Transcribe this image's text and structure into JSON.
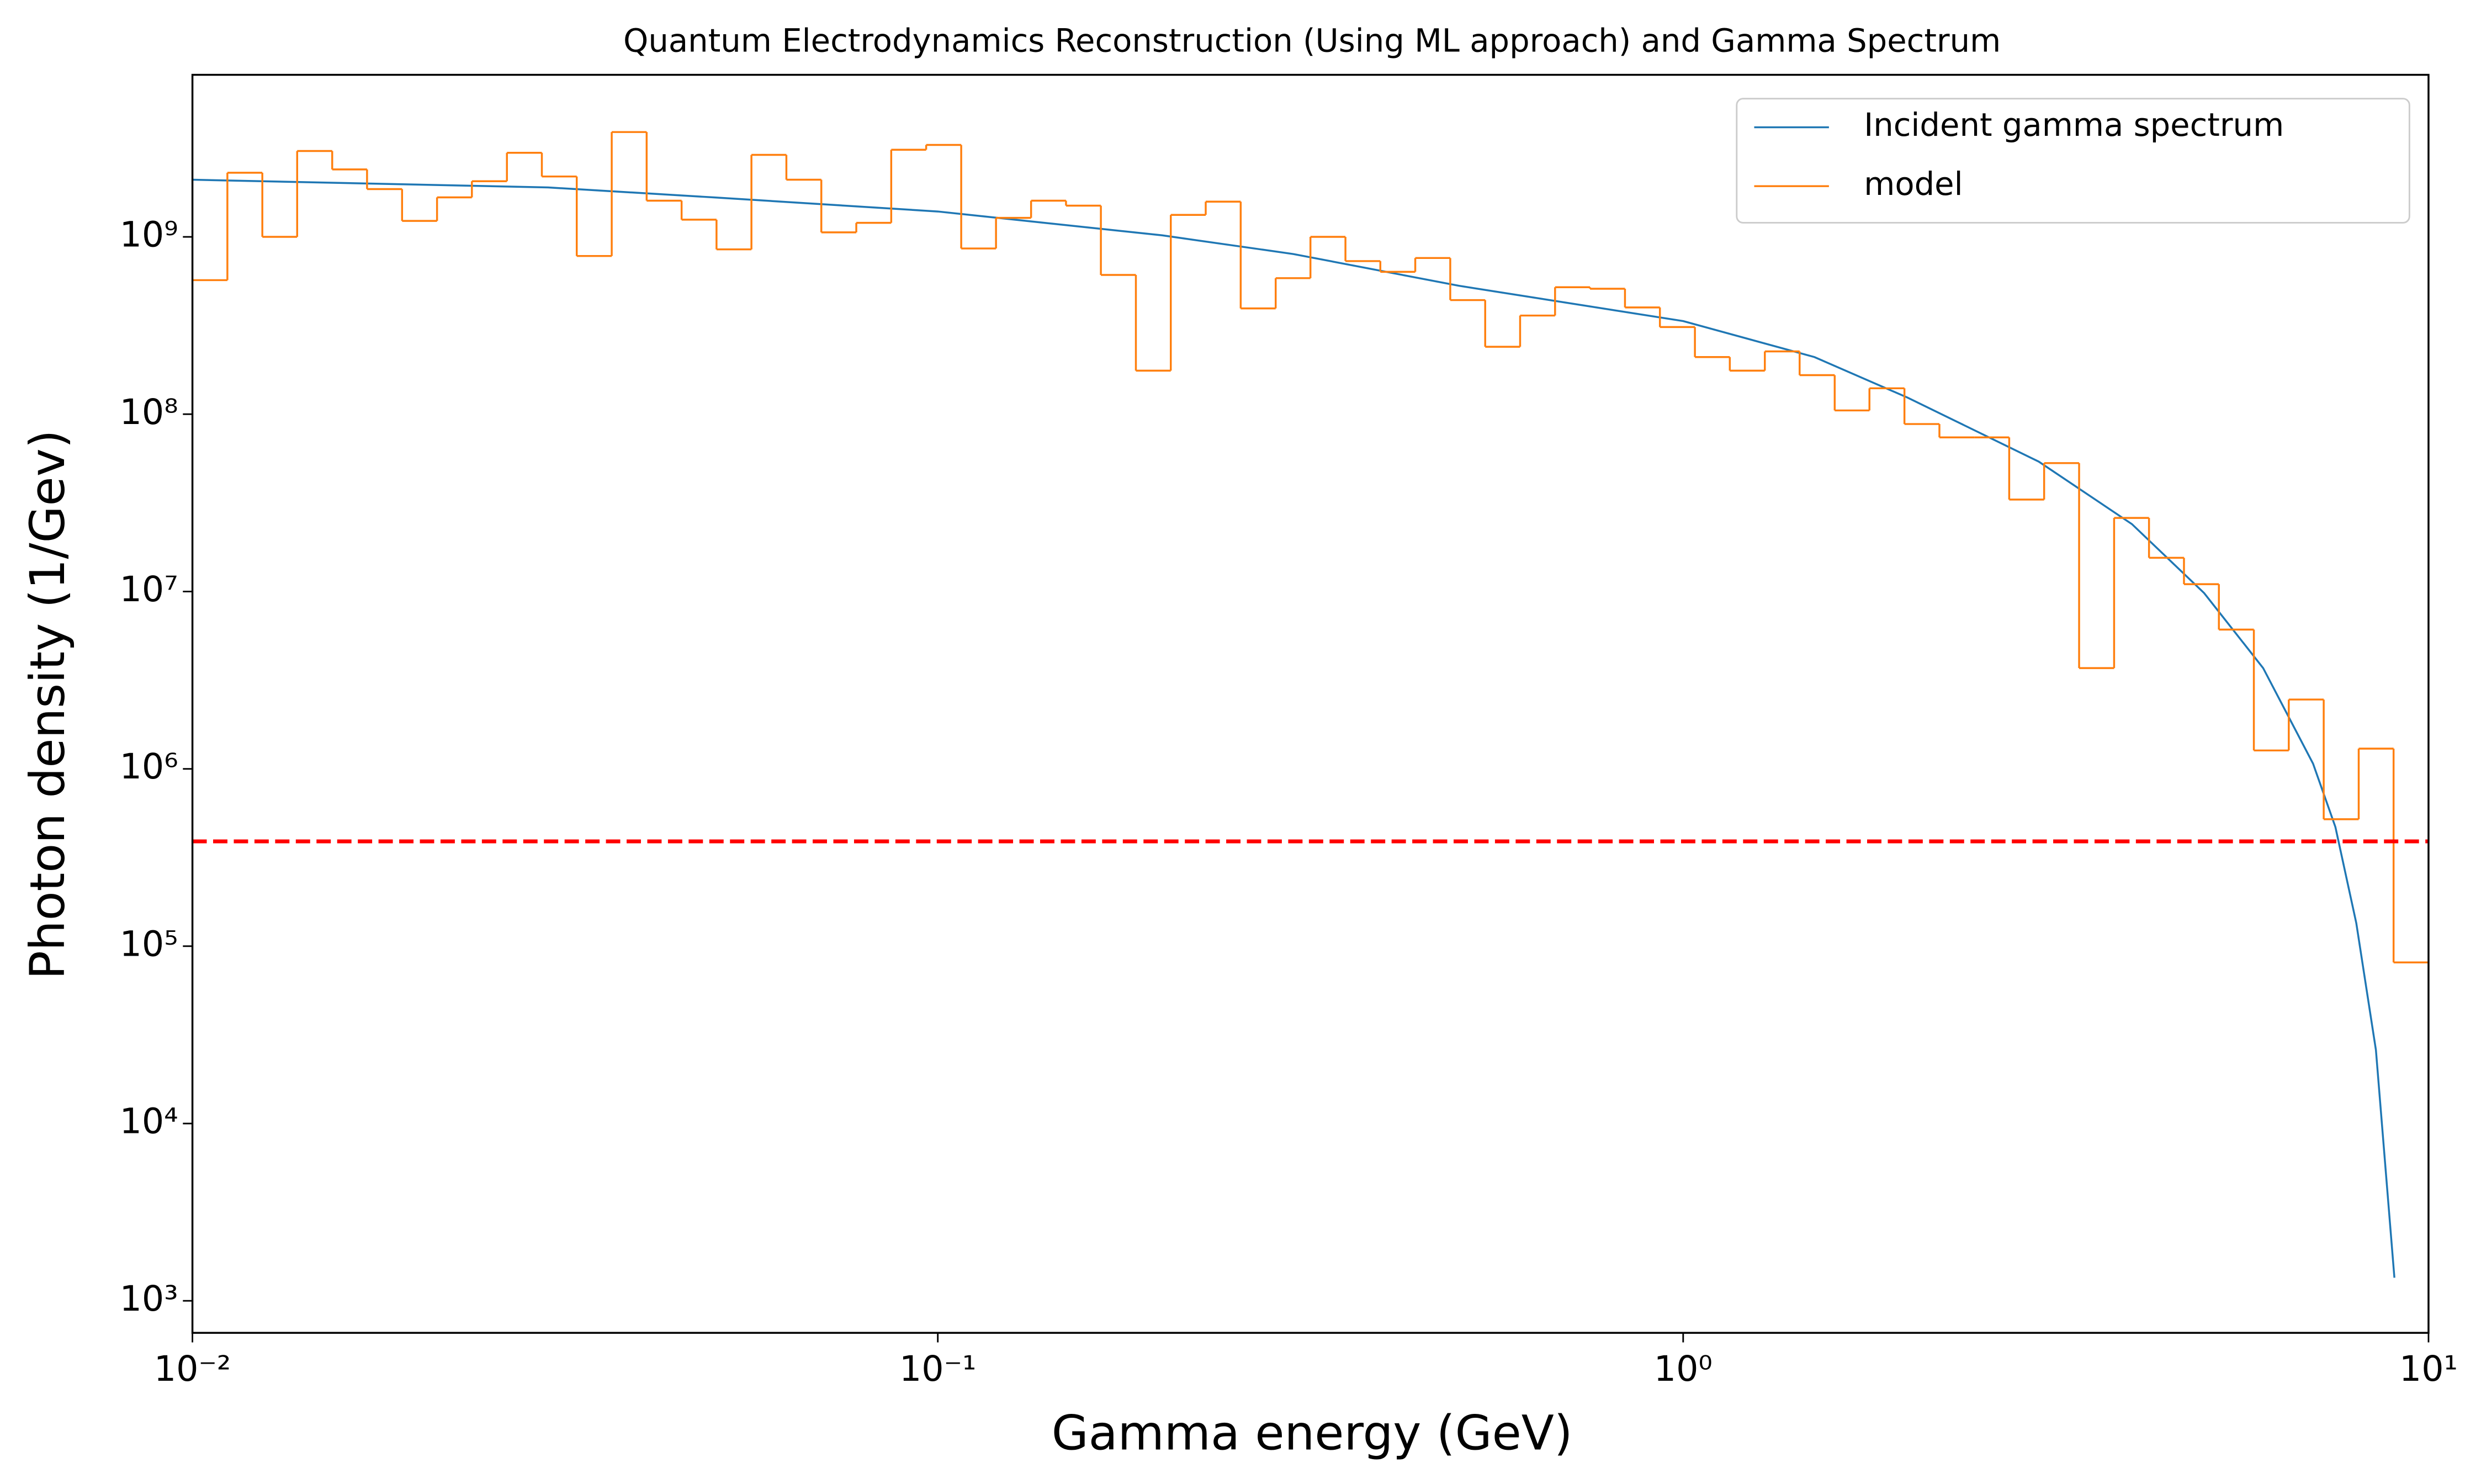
{
  "chart_data": {
    "type": "line",
    "title": "Quantum Electrodynamics Reconstruction (Using ML approach) and Gamma Spectrum",
    "x_label": "Gamma energy (GeV)",
    "y_label": "Photon density (1/Gev)",
    "x_log": true,
    "y_log": true,
    "xlim": [
      0.01,
      10
    ],
    "ylim": [
      660,
      8200000000
    ],
    "xticks": [
      {
        "value": 0.01,
        "label": "10⁻²"
      },
      {
        "value": 0.1,
        "label": "10⁻¹"
      },
      {
        "value": 1,
        "label": "10⁰"
      },
      {
        "value": 10,
        "label": "10¹"
      }
    ],
    "yticks": [
      {
        "value": 1000,
        "label": "10³"
      },
      {
        "value": 10000,
        "label": "10⁴"
      },
      {
        "value": 100000,
        "label": "10⁵"
      },
      {
        "value": 1000000,
        "label": "10⁶"
      },
      {
        "value": 10000000,
        "label": "10⁷"
      },
      {
        "value": 100000000,
        "label": "10⁸"
      },
      {
        "value": 1000000000,
        "label": "10⁹"
      }
    ],
    "legend": "upper right",
    "reference_line": {
      "value": 390000,
      "color": "#ff0000",
      "style": "dashed"
    },
    "series": [
      {
        "name": "Incident gamma spectrum",
        "color": "#1f77b4",
        "type": "line",
        "x": [
          0.01,
          0.03,
          0.05,
          0.1,
          0.2,
          0.3,
          0.5,
          1.0,
          1.5,
          2,
          3,
          4,
          5,
          6,
          7,
          7.5,
          8,
          8.5,
          9
        ],
        "values": [
          2100000000,
          1900000000,
          1670000000,
          1390000000,
          1020000000,
          800000000,
          530000000,
          335000000,
          210000000,
          124000000,
          54000000,
          24000000,
          9800000,
          3700000,
          1070000,
          470000,
          135000,
          26000,
          1350
        ]
      },
      {
        "name": "model",
        "color": "#ff7f0e",
        "type": "step",
        "bins": [
          0.01,
          0.01114,
          0.01241,
          0.01382,
          0.0154,
          0.01715,
          0.01911,
          0.02129,
          0.02371,
          0.02642,
          0.02943,
          0.03278,
          0.03652,
          0.04068,
          0.04532,
          0.05048,
          0.05623,
          0.06264,
          0.06978,
          0.07774,
          0.0866,
          0.09647,
          0.1075,
          0.1197,
          0.1334,
          0.1486,
          0.1655,
          0.1844,
          0.2054,
          0.2288,
          0.2549,
          0.284,
          0.3162,
          0.3523,
          0.3924,
          0.4371,
          0.487,
          0.5425,
          0.6043,
          0.6732,
          0.75,
          0.8355,
          0.9307,
          1.037,
          1.155,
          1.287,
          1.433,
          1.597,
          1.778,
          1.981,
          2.207,
          2.458,
          2.738,
          3.05,
          3.398,
          3.786,
          4.217,
          4.698,
          5.233,
          5.83,
          6.494,
          7.234,
          8.06,
          8.977,
          10
        ],
        "values": [
          570000000,
          2300000000,
          1000000000,
          3050000000,
          2400000000,
          1860000000,
          1230000000,
          1670000000,
          2060000000,
          2980000000,
          2190000000,
          780000000,
          3900000000,
          1600000000,
          1250000000,
          850000000,
          2900000000,
          2100000000,
          1060000000,
          1200000000,
          3100000000,
          3300000000,
          860000000,
          1280000000,
          1600000000,
          1500000000,
          610000000,
          176000000,
          1330000000,
          1580000000,
          395000000,
          585000000,
          1000000000,
          730000000,
          635000000,
          760000000,
          440000000,
          240000000,
          360000000,
          520000000,
          510000000,
          400000000,
          310000000,
          210000000,
          176000000,
          226000000,
          166000000,
          105000000,
          140000000,
          88000000,
          74000000,
          74000000,
          33000000,
          53000000,
          3700000,
          26000000,
          15500000,
          11000000,
          6100000,
          1270000,
          2460000,
          520000,
          1300000,
          81000
        ]
      }
    ]
  }
}
